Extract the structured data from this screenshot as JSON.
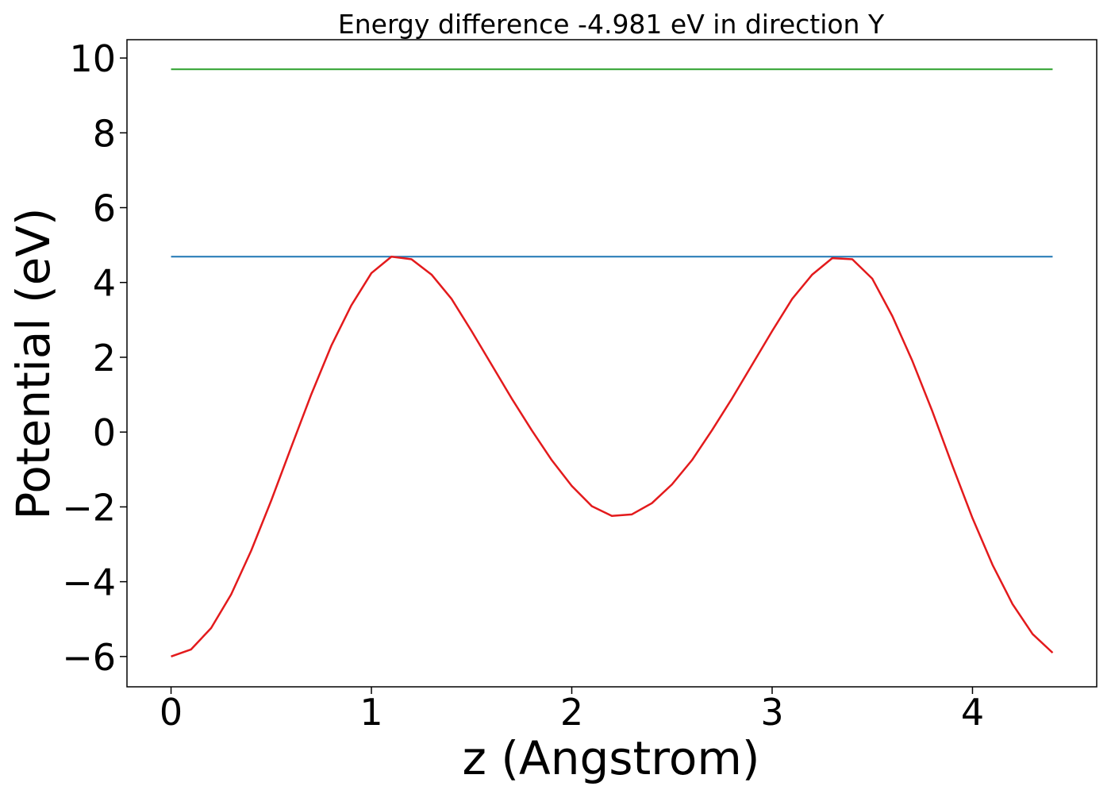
{
  "chart_data": {
    "type": "line",
    "title": "Energy difference -4.981 eV in direction Y",
    "xlabel": "z (Angstrom)",
    "ylabel": "Potential (eV)",
    "xlim": [
      -0.22,
      4.62
    ],
    "ylim": [
      -6.81,
      10.49
    ],
    "xticks": [
      0,
      1,
      2,
      3,
      4
    ],
    "yticks": [
      {
        "value": -6,
        "label": "−6"
      },
      {
        "value": -4,
        "label": "−4"
      },
      {
        "value": -2,
        "label": "−2"
      },
      0,
      2,
      4,
      6,
      8,
      10
    ],
    "grid": false,
    "series": [
      {
        "color": "#2ca02c",
        "x": [
          0,
          4.4
        ],
        "values": [
          9.7,
          9.7
        ]
      },
      {
        "color": "#1f77b4",
        "x": [
          0,
          4.4
        ],
        "values": [
          4.69,
          4.69
        ]
      },
      {
        "color": "#e31a1c",
        "x": [
          0,
          0.1,
          0.2,
          0.3,
          0.4,
          0.5,
          0.6,
          0.7,
          0.8,
          0.9,
          1.0,
          1.1,
          1.2,
          1.3,
          1.4,
          1.5,
          1.6,
          1.7,
          1.8,
          1.9,
          2.0,
          2.1,
          2.2,
          2.3,
          2.4,
          2.5,
          2.6,
          2.7,
          2.8,
          2.9,
          3.0,
          3.1,
          3.2,
          3.3,
          3.4,
          3.5,
          3.6,
          3.7,
          3.8,
          3.9,
          4.0,
          4.1,
          4.2,
          4.3,
          4.4
        ],
        "values": [
          -6.0,
          -5.81,
          -5.24,
          -4.34,
          -3.17,
          -1.83,
          -0.4,
          1.01,
          2.31,
          3.39,
          4.25,
          4.69,
          4.62,
          4.21,
          3.56,
          2.7,
          1.8,
          0.9,
          0.05,
          -0.75,
          -1.44,
          -1.98,
          -2.24,
          -2.2,
          -1.9,
          -1.4,
          -0.75,
          0.05,
          0.9,
          1.8,
          2.7,
          3.56,
          4.21,
          4.65,
          4.62,
          4.1,
          3.1,
          1.9,
          0.55,
          -0.9,
          -2.3,
          -3.55,
          -4.6,
          -5.4,
          -5.9
        ]
      }
    ]
  }
}
